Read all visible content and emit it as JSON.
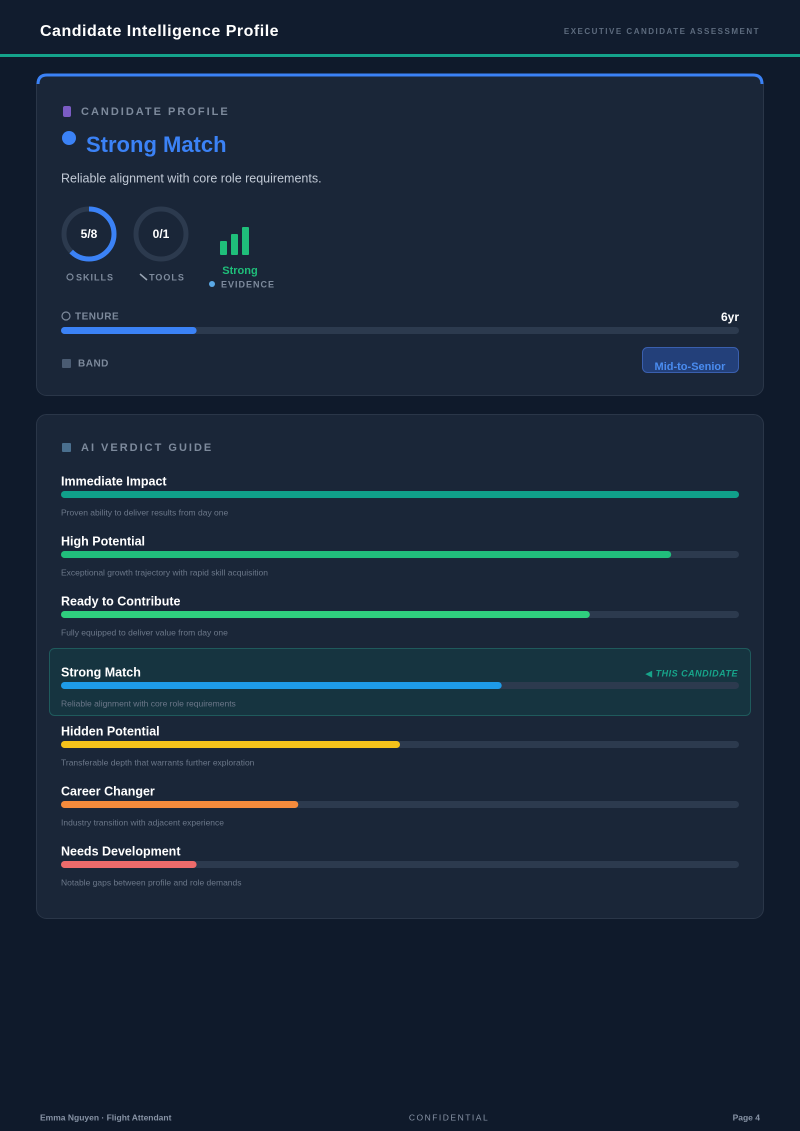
{
  "header": {
    "title": "Candidate Intelligence Profile",
    "subtitle": "EXECUTIVE CANDIDATE ASSESSMENT"
  },
  "profile": {
    "section_label": "CANDIDATE PROFILE",
    "verdict": "Strong Match",
    "summary": "Reliable alignment with core role requirements.",
    "skills": {
      "label": "5/8",
      "value": 5,
      "total": 8,
      "caption": "SKILLS"
    },
    "tools": {
      "label": "0/1",
      "value": 0,
      "total": 1,
      "caption": "TOOLS"
    },
    "evidence": {
      "level": "Strong",
      "caption": "EVIDENCE"
    },
    "tenure": {
      "caption": "TENURE",
      "label": "6yr",
      "fill": 20
    },
    "band": {
      "caption": "BAND",
      "label": "Mid-to-Senior"
    }
  },
  "verdict_guide": {
    "section_label": "AI VERDICT GUIDE",
    "marker": "◀ THIS CANDIDATE",
    "current": 3,
    "items": [
      {
        "name": "Immediate Impact",
        "description": "Proven ability to deliver results from day one",
        "fill": 100,
        "color": "#10a08a"
      },
      {
        "name": "High Potential",
        "description": "Exceptional growth trajectory with rapid skill acquisition",
        "fill": 90,
        "color": "#21bd7c"
      },
      {
        "name": "Ready to Contribute",
        "description": "Fully equipped to deliver value from day one",
        "fill": 78,
        "color": "#2fcf7e"
      },
      {
        "name": "Strong Match",
        "description": "Reliable alignment with core role requirements",
        "fill": 65,
        "color": "#1e9be8"
      },
      {
        "name": "Hidden Potential",
        "description": "Transferable depth that warrants further exploration",
        "fill": 50,
        "color": "#f5c21b"
      },
      {
        "name": "Career Changer",
        "description": "Industry transition with adjacent experience",
        "fill": 35,
        "color": "#f58b3c"
      },
      {
        "name": "Needs Development",
        "description": "Notable gaps between profile and role demands",
        "fill": 20,
        "color": "#ee6b6b"
      }
    ]
  },
  "footer": {
    "left": "Emma Nguyen · Flight Attendant",
    "center": "CONFIDENTIAL",
    "right": "Page 4"
  }
}
